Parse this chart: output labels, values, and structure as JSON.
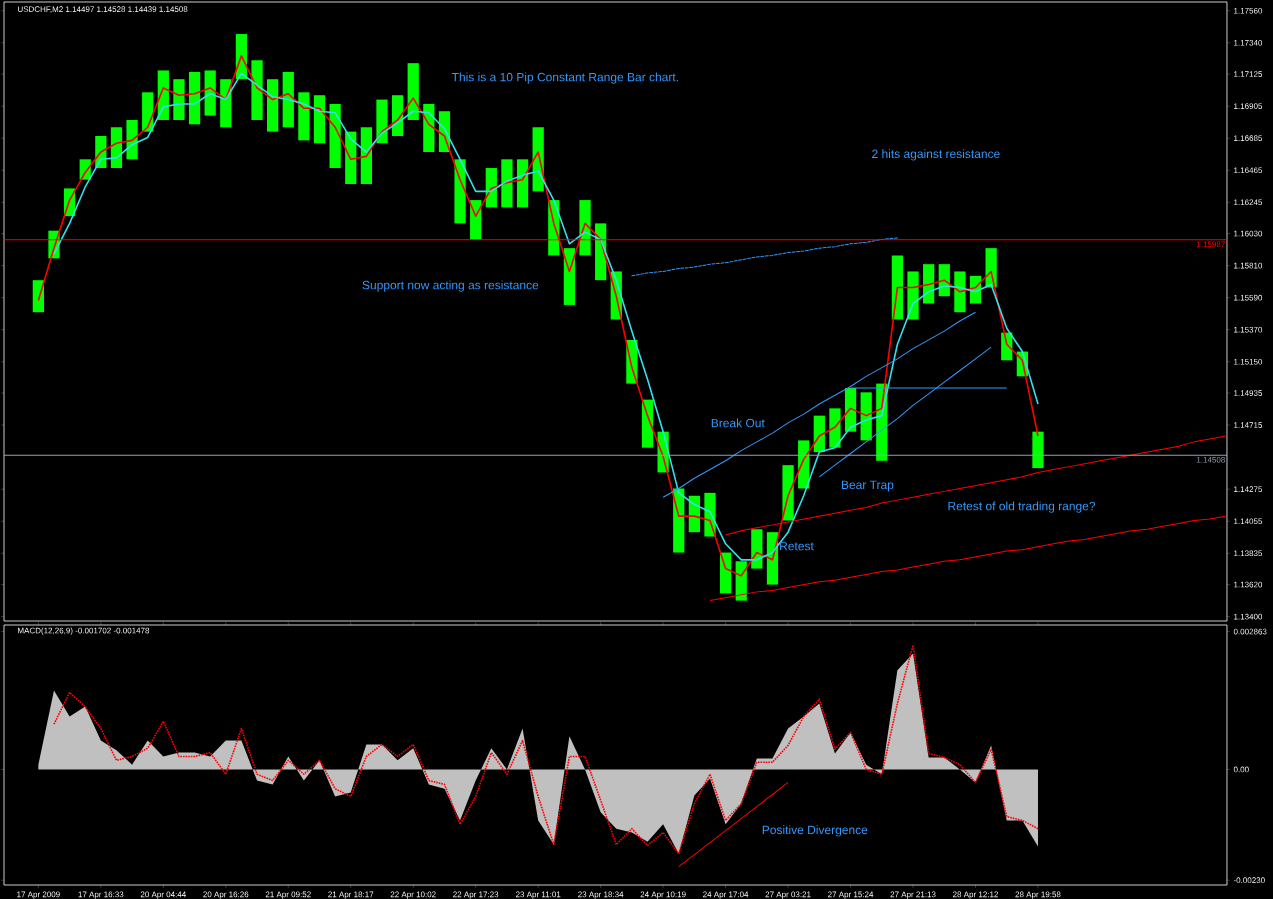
{
  "chart_data": [
    {
      "type": "line",
      "title": "USDCHF,M2  1.14497 1.14528 1.14439 1.14508",
      "annotations": [
        "This is a 10 Pip Constant Range Bar chart.",
        "2 hits against resistance",
        "Support now acting as resistance",
        "Break Out",
        "Bear Trap",
        "Retest",
        "Retest of old trading range?"
      ],
      "categories": [
        null,
        null,
        null,
        null,
        null,
        null,
        null,
        null,
        null,
        null,
        null,
        null,
        null,
        null,
        null,
        null,
        null,
        null,
        null,
        null,
        null,
        null,
        null,
        null,
        null,
        null,
        null,
        null,
        null,
        null,
        null,
        null,
        null,
        null,
        null,
        null,
        null,
        null,
        null,
        null,
        null,
        null,
        null,
        null,
        null,
        null,
        null,
        null,
        null,
        null,
        null,
        null,
        null,
        null,
        null,
        null,
        null,
        null,
        null,
        null,
        null,
        null,
        null,
        null,
        null,
        null,
        null,
        null,
        null,
        null,
        null,
        null,
        null,
        null,
        null,
        null,
        null
      ],
      "ylim": [
        1.1337,
        1.1762
      ],
      "yticks": [
        {
          "value": 1.1756,
          "label": "1.17560"
        },
        {
          "value": 1.1734,
          "label": "1.17340"
        },
        {
          "value": 1.17125,
          "label": "1.17125"
        },
        {
          "value": 1.16905,
          "label": "1.16905"
        },
        {
          "value": 1.16685,
          "label": "1.16685"
        },
        {
          "value": 1.16465,
          "label": "1.16465"
        },
        {
          "value": 1.16245,
          "label": "1.16245"
        },
        {
          "value": 1.1603,
          "label": "1.16030"
        },
        {
          "value": 1.1581,
          "label": "1.15810"
        },
        {
          "value": 1.1559,
          "label": "1.15590"
        },
        {
          "value": 1.1537,
          "label": "1.15370"
        },
        {
          "value": 1.1515,
          "label": "1.15150"
        },
        {
          "value": 1.14935,
          "label": "1.14935"
        },
        {
          "value": 1.14715,
          "label": "1.14715"
        },
        {
          "value": 1.14275,
          "label": "1.14275"
        },
        {
          "value": 1.14055,
          "label": "1.14055"
        },
        {
          "value": 1.13835,
          "label": "1.13835"
        },
        {
          "value": 1.1362,
          "label": "1.13620"
        },
        {
          "value": 1.134,
          "label": "1.13400"
        }
      ],
      "tick_labels": "y",
      "ref_lines": [
        {
          "axis": "y",
          "value": 1.15987,
          "label": "1.15987",
          "color": "#ff0000"
        },
        {
          "axis": "y",
          "value": 1.14508,
          "label": "1.14508",
          "color": "#8fa3b8"
        }
      ],
      "series": [
        {
          "type": "bar",
          "color": "#00ff00",
          "base": [
            1.1549,
            1.1586,
            1.1615,
            1.164,
            1.1648,
            1.1648,
            1.1654,
            1.1673,
            1.1681,
            1.1681,
            1.1678,
            1.1684,
            1.1676,
            1.1709,
            1.1681,
            1.1673,
            1.1676,
            1.1667,
            1.1665,
            1.1648,
            1.1637,
            1.1637,
            1.1665,
            1.167,
            1.1681,
            1.1659,
            1.1659,
            1.161,
            1.1599,
            1.1621,
            1.1621,
            1.1621,
            1.1632,
            1.1588,
            1.1554,
            1.1588,
            1.1571,
            1.1544,
            1.15,
            1.1456,
            1.1439,
            1.1384,
            1.1398,
            1.1395,
            1.1356,
            1.1351,
            1.1373,
            1.1362,
            1.1406,
            1.1428,
            1.1453,
            1.1456,
            1.1467,
            1.1461,
            1.1447,
            1.1544,
            1.1544,
            1.1555,
            1.156,
            1.1549,
            1.1555,
            1.1566,
            1.1516,
            1.1505,
            1.1442,
            null,
            null,
            null,
            null,
            null,
            null,
            null,
            null,
            null,
            null,
            null,
            null
          ],
          "values": [
            0.0022,
            0.0019,
            0.0019,
            0.0014,
            0.0022,
            0.0028,
            0.0027,
            0.0027,
            0.0034,
            0.0028,
            0.0036,
            0.0031,
            0.0033,
            0.0031,
            0.0041,
            0.0036,
            0.0038,
            0.0033,
            0.0033,
            0.0044,
            0.0036,
            0.0039,
            0.003,
            0.0028,
            0.0039,
            0.0033,
            0.0028,
            0.0044,
            0.0027,
            0.0027,
            0.0033,
            0.0033,
            0.0044,
            0.0038,
            0.0039,
            0.0038,
            0.0039,
            0.0033,
            0.003,
            0.0033,
            0.0028,
            0.0044,
            0.0025,
            0.003,
            0.0028,
            0.0027,
            0.0027,
            0.0036,
            0.0038,
            0.0033,
            0.0025,
            0.0027,
            0.003,
            0.0033,
            0.0053,
            0.0044,
            0.0033,
            0.0027,
            0.0022,
            0.0028,
            0.0019,
            0.0027,
            0.0019,
            0.0017,
            0.0025,
            null,
            null,
            null,
            null,
            null,
            null,
            null,
            null,
            null,
            null,
            null,
            null
          ]
        },
        {
          "color": "#ff0000",
          "values": [
            1.1557,
            1.1593,
            1.1626,
            1.1645,
            1.1659,
            1.1665,
            1.1667,
            1.1676,
            1.1703,
            1.1698,
            1.1699,
            1.1703,
            1.1695,
            1.1725,
            1.1703,
            1.1695,
            1.1699,
            1.1689,
            1.1689,
            1.1676,
            1.1654,
            1.1656,
            1.1673,
            1.1681,
            1.1696,
            1.1678,
            1.167,
            1.164,
            1.1615,
            1.1634,
            1.1638,
            1.164,
            1.1659,
            1.161,
            1.1577,
            1.161,
            1.1599,
            1.156,
            1.1511,
            1.1478,
            1.145,
            1.1409,
            1.1409,
            1.1406,
            1.1373,
            1.1368,
            1.1384,
            1.1379,
            1.1423,
            1.1448,
            1.1464,
            1.147,
            1.1483,
            1.1478,
            1.1483,
            1.1566,
            1.1566,
            1.1568,
            1.1571,
            1.1563,
            1.1566,
            1.1577,
            1.1527,
            1.1516,
            1.1464,
            null,
            null,
            null,
            null,
            null,
            null,
            null,
            null,
            null,
            null,
            null,
            null
          ]
        },
        {
          "color": "#33e0f0",
          "values": [
            null,
            1.1589,
            1.161,
            1.1635,
            1.1654,
            1.1655,
            1.1664,
            1.1669,
            1.169,
            1.1692,
            1.1692,
            1.1699,
            1.1695,
            1.1713,
            1.1705,
            1.1697,
            1.1695,
            1.1692,
            1.1687,
            1.1686,
            1.1668,
            1.1659,
            1.1672,
            1.1679,
            1.1687,
            1.1686,
            1.1675,
            1.1654,
            1.1632,
            1.1632,
            1.1639,
            1.1643,
            1.1646,
            1.1626,
            1.1596,
            1.1604,
            1.1599,
            1.1571,
            1.1536,
            1.1503,
            1.1467,
            1.1425,
            1.1417,
            1.1412,
            1.139,
            1.1379,
            1.1379,
            1.1384,
            1.1398,
            1.1423,
            1.1453,
            1.1456,
            1.147,
            1.1475,
            1.1478,
            1.1527,
            1.1555,
            1.1563,
            1.1567,
            1.1566,
            1.1563,
            1.1568,
            1.1538,
            1.1522,
            1.1486,
            null,
            null,
            null,
            null,
            null,
            null,
            null,
            null,
            null,
            null,
            null,
            null
          ]
        },
        {
          "color": "#3399ff",
          "values": [
            null,
            null,
            null,
            null,
            null,
            null,
            null,
            null,
            null,
            null,
            null,
            null,
            null,
            null,
            null,
            null,
            null,
            null,
            null,
            null,
            null,
            null,
            null,
            null,
            null,
            null,
            null,
            null,
            null,
            null,
            null,
            null,
            null,
            null,
            null,
            null,
            null,
            null,
            null,
            null,
            1.1422,
            1.1428,
            1.1435,
            1.1441,
            1.1447,
            1.1454,
            1.146,
            1.1466,
            1.1473,
            1.1479,
            1.1486,
            1.1492,
            1.1498,
            1.1505,
            1.1511,
            1.1517,
            1.1524,
            1.153,
            1.1536,
            1.1543,
            1.1549,
            null,
            null,
            null,
            null,
            null,
            null,
            null,
            null,
            null,
            null,
            null,
            null,
            null,
            null,
            null,
            null
          ]
        },
        {
          "color": "#3399ff",
          "values": [
            null,
            null,
            null,
            null,
            null,
            null,
            null,
            null,
            null,
            null,
            null,
            null,
            null,
            null,
            null,
            null,
            null,
            null,
            null,
            null,
            null,
            null,
            null,
            null,
            null,
            null,
            null,
            null,
            null,
            null,
            null,
            null,
            null,
            null,
            null,
            null,
            null,
            null,
            null,
            null,
            null,
            null,
            null,
            null,
            null,
            null,
            null,
            null,
            null,
            null,
            1.1436,
            1.1444,
            1.1452,
            1.146,
            1.1468,
            1.1476,
            1.1485,
            1.1493,
            1.1501,
            1.1509,
            1.1517,
            1.1525,
            null,
            null,
            null,
            null,
            null,
            null,
            null,
            null,
            null,
            null,
            null,
            null,
            null,
            null,
            null
          ]
        },
        {
          "color": "#3399ff",
          "values": [
            null,
            null,
            null,
            null,
            null,
            null,
            null,
            null,
            null,
            null,
            null,
            null,
            null,
            null,
            null,
            null,
            null,
            null,
            null,
            null,
            null,
            null,
            null,
            null,
            null,
            null,
            null,
            null,
            null,
            null,
            null,
            null,
            null,
            null,
            null,
            null,
            null,
            null,
            null,
            null,
            null,
            null,
            null,
            null,
            null,
            null,
            null,
            null,
            null,
            null,
            null,
            null,
            1.1497,
            1.1497,
            1.1497,
            1.1497,
            1.1497,
            1.1497,
            1.1497,
            1.1497,
            1.1497,
            1.1497,
            1.1497,
            null,
            null,
            null,
            null,
            null,
            null,
            null,
            null,
            null,
            null,
            null,
            null,
            null,
            null
          ]
        },
        {
          "color": "#ff0000",
          "values": [
            null,
            null,
            null,
            null,
            null,
            null,
            null,
            null,
            null,
            null,
            null,
            null,
            null,
            null,
            null,
            null,
            null,
            null,
            null,
            null,
            null,
            null,
            null,
            null,
            null,
            null,
            null,
            null,
            null,
            null,
            null,
            null,
            null,
            null,
            null,
            null,
            null,
            null,
            null,
            null,
            null,
            null,
            null,
            null,
            1.1396,
            1.1399,
            1.1401,
            1.1403,
            1.1405,
            1.1407,
            1.1409,
            1.1411,
            1.1413,
            1.1415,
            1.1418,
            1.142,
            1.1422,
            1.1424,
            1.1426,
            1.1428,
            1.143,
            1.1432,
            1.1434,
            1.1436,
            1.1439,
            1.1441,
            1.1443,
            1.1445,
            1.1447,
            1.1449,
            1.1451,
            1.1453,
            1.1455,
            1.1457,
            1.146,
            1.1462,
            1.1464
          ]
        },
        {
          "color": "#ff0000",
          "values": [
            null,
            null,
            null,
            null,
            null,
            null,
            null,
            null,
            null,
            null,
            null,
            null,
            null,
            null,
            null,
            null,
            null,
            null,
            null,
            null,
            null,
            null,
            null,
            null,
            null,
            null,
            null,
            null,
            null,
            null,
            null,
            null,
            null,
            null,
            null,
            null,
            null,
            null,
            null,
            null,
            null,
            null,
            null,
            1.1351,
            1.1353,
            1.1355,
            1.1357,
            1.1358,
            1.136,
            1.1362,
            1.1364,
            1.1365,
            1.1367,
            1.1369,
            1.1371,
            1.1372,
            1.1374,
            1.1376,
            1.1378,
            1.1379,
            1.1381,
            1.1383,
            1.1385,
            1.1386,
            1.1388,
            1.139,
            1.1392,
            1.1393,
            1.1395,
            1.1397,
            1.1399,
            1.14,
            1.1402,
            1.1404,
            1.1406,
            1.1407,
            1.1409
          ]
        },
        {
          "color": "#3399ff",
          "line_style": "dashed",
          "values": [
            null,
            null,
            null,
            null,
            null,
            null,
            null,
            null,
            null,
            null,
            null,
            null,
            null,
            null,
            null,
            null,
            null,
            null,
            null,
            null,
            null,
            null,
            null,
            null,
            null,
            null,
            null,
            null,
            null,
            null,
            null,
            null,
            null,
            null,
            null,
            null,
            null,
            null,
            1.1574,
            1.1576,
            1.1577,
            1.1579,
            1.158,
            1.1582,
            1.1583,
            1.1585,
            1.1587,
            1.1588,
            1.159,
            1.1591,
            1.1593,
            1.1594,
            1.1596,
            1.1597,
            1.1599,
            1.16,
            null,
            null,
            null,
            null,
            null,
            null,
            null,
            null,
            null,
            null,
            null,
            null,
            null,
            null,
            null,
            null,
            null,
            null,
            null,
            null,
            null
          ]
        }
      ]
    },
    {
      "type": "area",
      "title": "MACD(12,26,9) -0.001702 -0.001478",
      "annotations": [
        "Positive Divergence"
      ],
      "categories": [
        "17 Apr 2009",
        null,
        null,
        null,
        "17 Apr 16:33",
        null,
        null,
        null,
        "20 Apr 04:44",
        null,
        null,
        null,
        "20 Apr 16:26",
        null,
        null,
        null,
        "21 Apr 09:52",
        null,
        null,
        null,
        "21 Apr 18:17",
        null,
        null,
        null,
        "22 Apr 10:02",
        null,
        null,
        null,
        "22 Apr 17:23",
        null,
        null,
        null,
        "23 Apr 11:01",
        null,
        null,
        null,
        "23 Apr 18:34",
        null,
        null,
        null,
        "24 Apr 10:19",
        null,
        null,
        null,
        "24 Apr 17:04",
        null,
        null,
        null,
        "27 Apr 03:21",
        null,
        null,
        null,
        "27 Apr 15:24",
        null,
        null,
        null,
        "27 Apr 21:13",
        null,
        null,
        null,
        "28 Apr 12:12",
        null,
        null,
        null,
        "28 Apr 19:58",
        null,
        null,
        null,
        null,
        null,
        null,
        null,
        null,
        null,
        null,
        null,
        null
      ],
      "ylim": [
        -0.0024,
        0.003
      ],
      "yticks": [
        0.002863,
        {
          "value": 0,
          "label": "0.00"
        },
        {
          "value": -0.0023,
          "label": "-0.00230"
        }
      ],
      "series": [
        {
          "color": "#c0c0c0",
          "values": [
            0.0001,
            0.00164,
            0.0011,
            0.00131,
            0.0006,
            0.0004,
            0.0001,
            0.0006,
            0.00027,
            0.00035,
            0.00035,
            0.00027,
            0.0006,
            0.0006,
            -0.00023,
            -0.00031,
            0.00027,
            -0.00023,
            0.00019,
            -0.00056,
            -0.00048,
            0.00052,
            0.00052,
            0.00019,
            0.00044,
            -0.00031,
            -0.0004,
            -0.00106,
            -0.00023,
            0.00044,
            0,
            0.00085,
            -0.00106,
            -0.00156,
            0.00069,
            0,
            -0.00089,
            -0.00123,
            -0.00131,
            -0.0015,
            -0.00114,
            -0.00175,
            -0.00054,
            -0.00019,
            -0.00114,
            -0.00071,
            0.00023,
            0.00023,
            0.00085,
            0.0011,
            0.00137,
            0.00033,
            0.00077,
            0.0001,
            -0.0001,
            0.00206,
            0.00241,
            0.00025,
            0.00025,
            0,
            -0.00027,
            0.0005,
            -0.00106,
            -0.00106,
            -0.0016,
            null,
            null,
            null,
            null,
            null,
            null,
            null,
            null,
            null,
            null,
            null,
            null
          ]
        },
        {
          "type": "line",
          "color": "#ff0000",
          "line_style": "dotted",
          "values": [
            null,
            0.00094,
            0.0016,
            0.0013,
            0.00085,
            0.00019,
            0.00027,
            0.00044,
            0.001,
            0.00027,
            0.00027,
            0.00035,
            -0.0001,
            0.00085,
            -0.0001,
            -0.00023,
            0.00019,
            -0.0001,
            0.00019,
            -0.0004,
            -0.00056,
            0.00027,
            0.00052,
            0.00027,
            0.00052,
            -0.00023,
            -0.00031,
            -0.00114,
            -0.00056,
            0.00035,
            -0.0001,
            0.0006,
            -0.00056,
            -0.00156,
            0.00027,
            0.00027,
            -0.00064,
            -0.00156,
            -0.00123,
            -0.00158,
            -0.00131,
            -0.00175,
            -0.00071,
            -0.0001,
            -0.00106,
            -0.00071,
            0.00015,
            0.00015,
            0.0005,
            0.0011,
            0.00146,
            0.00042,
            0.00077,
            0,
            -0.0001,
            0.00137,
            0.00258,
            0.00033,
            0.00025,
            0.0001,
            -0.00027,
            0.00042,
            -0.00098,
            -0.00106,
            -0.00123,
            null,
            null,
            null,
            null,
            null,
            null,
            null,
            null,
            null,
            null,
            null,
            null
          ]
        },
        {
          "type": "line",
          "color": "#ff0000",
          "values": [
            null,
            null,
            null,
            null,
            null,
            null,
            null,
            null,
            null,
            null,
            null,
            null,
            null,
            null,
            null,
            null,
            null,
            null,
            null,
            null,
            null,
            null,
            null,
            null,
            null,
            null,
            null,
            null,
            null,
            null,
            null,
            null,
            null,
            null,
            null,
            null,
            null,
            null,
            null,
            null,
            null,
            -0.00202,
            -0.00177,
            -0.00152,
            -0.00127,
            -0.00102,
            -0.00077,
            -0.00052,
            -0.00027,
            null,
            null,
            null,
            null,
            null,
            null,
            null,
            null,
            null,
            null,
            null,
            null,
            null,
            null,
            null,
            null,
            null,
            null,
            null,
            null,
            null,
            null,
            null,
            null,
            null,
            null,
            null,
            null
          ]
        }
      ]
    }
  ]
}
